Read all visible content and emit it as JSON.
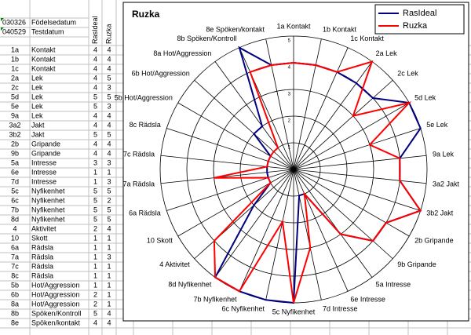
{
  "sheet": {
    "info": [
      [
        "030326",
        "Födelsedatum"
      ],
      [
        "040529",
        "Testdatum"
      ]
    ],
    "headers": [
      "RasIdeal",
      "Ruzka"
    ],
    "rows": [
      [
        "1a",
        "Kontakt",
        4,
        4
      ],
      [
        "1b",
        "Kontakt",
        4,
        4
      ],
      [
        "1c",
        "Kontakt",
        4,
        4
      ],
      [
        "2a",
        "Lek",
        4,
        5
      ],
      [
        "2c",
        "Lek",
        4,
        3
      ],
      [
        "5d",
        "Lek",
        5,
        5
      ],
      [
        "5e",
        "Lek",
        5,
        3
      ],
      [
        "9a",
        "Lek",
        4,
        4
      ],
      [
        "3a2",
        "Jakt",
        4,
        4
      ],
      [
        "3b2",
        "Jakt",
        5,
        5
      ],
      [
        "2b",
        "Gripande",
        4,
        4
      ],
      [
        "9b",
        "Gripande",
        4,
        4
      ],
      [
        "5a",
        "Intresse",
        3,
        3
      ],
      [
        "6e",
        "Intresse",
        1,
        1
      ],
      [
        "7d",
        "Intresse",
        1,
        3
      ],
      [
        "5c",
        "Nyfikenhet",
        5,
        5
      ],
      [
        "6c",
        "Nyfikenhet",
        5,
        2
      ],
      [
        "7b",
        "Nyfikenhet",
        5,
        5
      ],
      [
        "8d",
        "Nyfikenhet",
        5,
        5
      ],
      [
        "4",
        "Aktivitet",
        2,
        4
      ],
      [
        "10",
        "Skott",
        1,
        1
      ],
      [
        "6a",
        "Rädsla",
        1,
        1
      ],
      [
        "7a",
        "Rädsla",
        1,
        3
      ],
      [
        "7c",
        "Rädsla",
        1,
        1
      ],
      [
        "8c",
        "Rädsla",
        1,
        1
      ],
      [
        "5b",
        "Hot/Aggression",
        1,
        1
      ],
      [
        "6b",
        "Hot/Aggression",
        2,
        1
      ],
      [
        "8a",
        "Hot/Aggression",
        2,
        1
      ],
      [
        "8b",
        "Spöken/Kontroll",
        5,
        4
      ],
      [
        "8e",
        "Spöken/kontakt",
        4,
        4
      ]
    ]
  },
  "chart_data": {
    "type": "radar",
    "title": "Ruzka",
    "categories": [
      "1a Kontakt",
      "1b Kontakt",
      "1c Kontakt",
      "2a Lek",
      "2c Lek",
      "5d Lek",
      "5e Lek",
      "9a Lek",
      "3a2 Jakt",
      "3b2 Jakt",
      "2b Gripande",
      "9b Gripande",
      "5a Intresse",
      "6e Intresse",
      "7d Intresse",
      "5c Nyfikenhet",
      "6c Nyfikenhet",
      "7b Nyfikenhet",
      "8d Nyfikenhet",
      "4 Aktivitet",
      "10 Skott",
      "6a Rädsla",
      "7a Rädsla",
      "7c Rädsla",
      "8c Rädsla",
      "5b Hot/Aggression",
      "6b Hot/Aggression",
      "8a Hot/Aggression",
      "8b Spöken/Kontroll",
      "8e Spöken/kontakt"
    ],
    "series": [
      {
        "name": "RasIdeal",
        "color": "#000080",
        "values": [
          4,
          4,
          4,
          4,
          4,
          5,
          5,
          4,
          4,
          5,
          4,
          4,
          3,
          1,
          1,
          5,
          5,
          5,
          5,
          2,
          1,
          1,
          1,
          1,
          1,
          1,
          2,
          2,
          5,
          4
        ]
      },
      {
        "name": "Ruzka",
        "color": "#ff0000",
        "values": [
          4,
          4,
          4,
          5,
          3,
          5,
          3,
          4,
          4,
          5,
          4,
          4,
          3,
          1,
          3,
          5,
          2,
          5,
          5,
          4,
          1,
          1,
          3,
          1,
          1,
          1,
          1,
          1,
          4,
          4
        ]
      }
    ],
    "ylim": [
      0,
      5
    ],
    "yticks": [
      1,
      2,
      3,
      4,
      5
    ],
    "grid": true,
    "legend": "top-right"
  }
}
